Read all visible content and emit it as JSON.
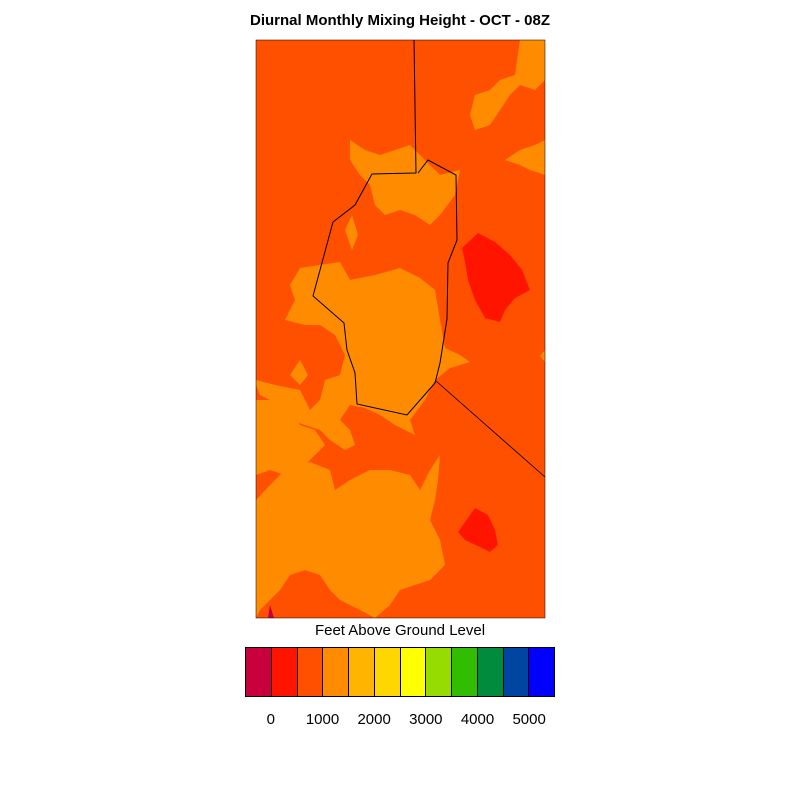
{
  "title": "Diurnal Monthly Mixing Height - OCT - 08Z",
  "legend": {
    "title": "Feet Above Ground Level",
    "colors": [
      "#c8003c",
      "#ff1400",
      "#ff5000",
      "#ff8c00",
      "#ffb400",
      "#ffd700",
      "#ffff00",
      "#96dc00",
      "#32be00",
      "#008c3c",
      "#0046a0",
      "#0000ff"
    ],
    "tick_labels": [
      "0",
      "1000",
      "2000",
      "3000",
      "4000",
      "5000"
    ]
  },
  "map": {
    "fill_colors": {
      "base": "#ff5000",
      "mid": "#ff8c00",
      "low": "#ff1400",
      "lowest": "#c8003c"
    },
    "boundary_color": "#000000"
  }
}
